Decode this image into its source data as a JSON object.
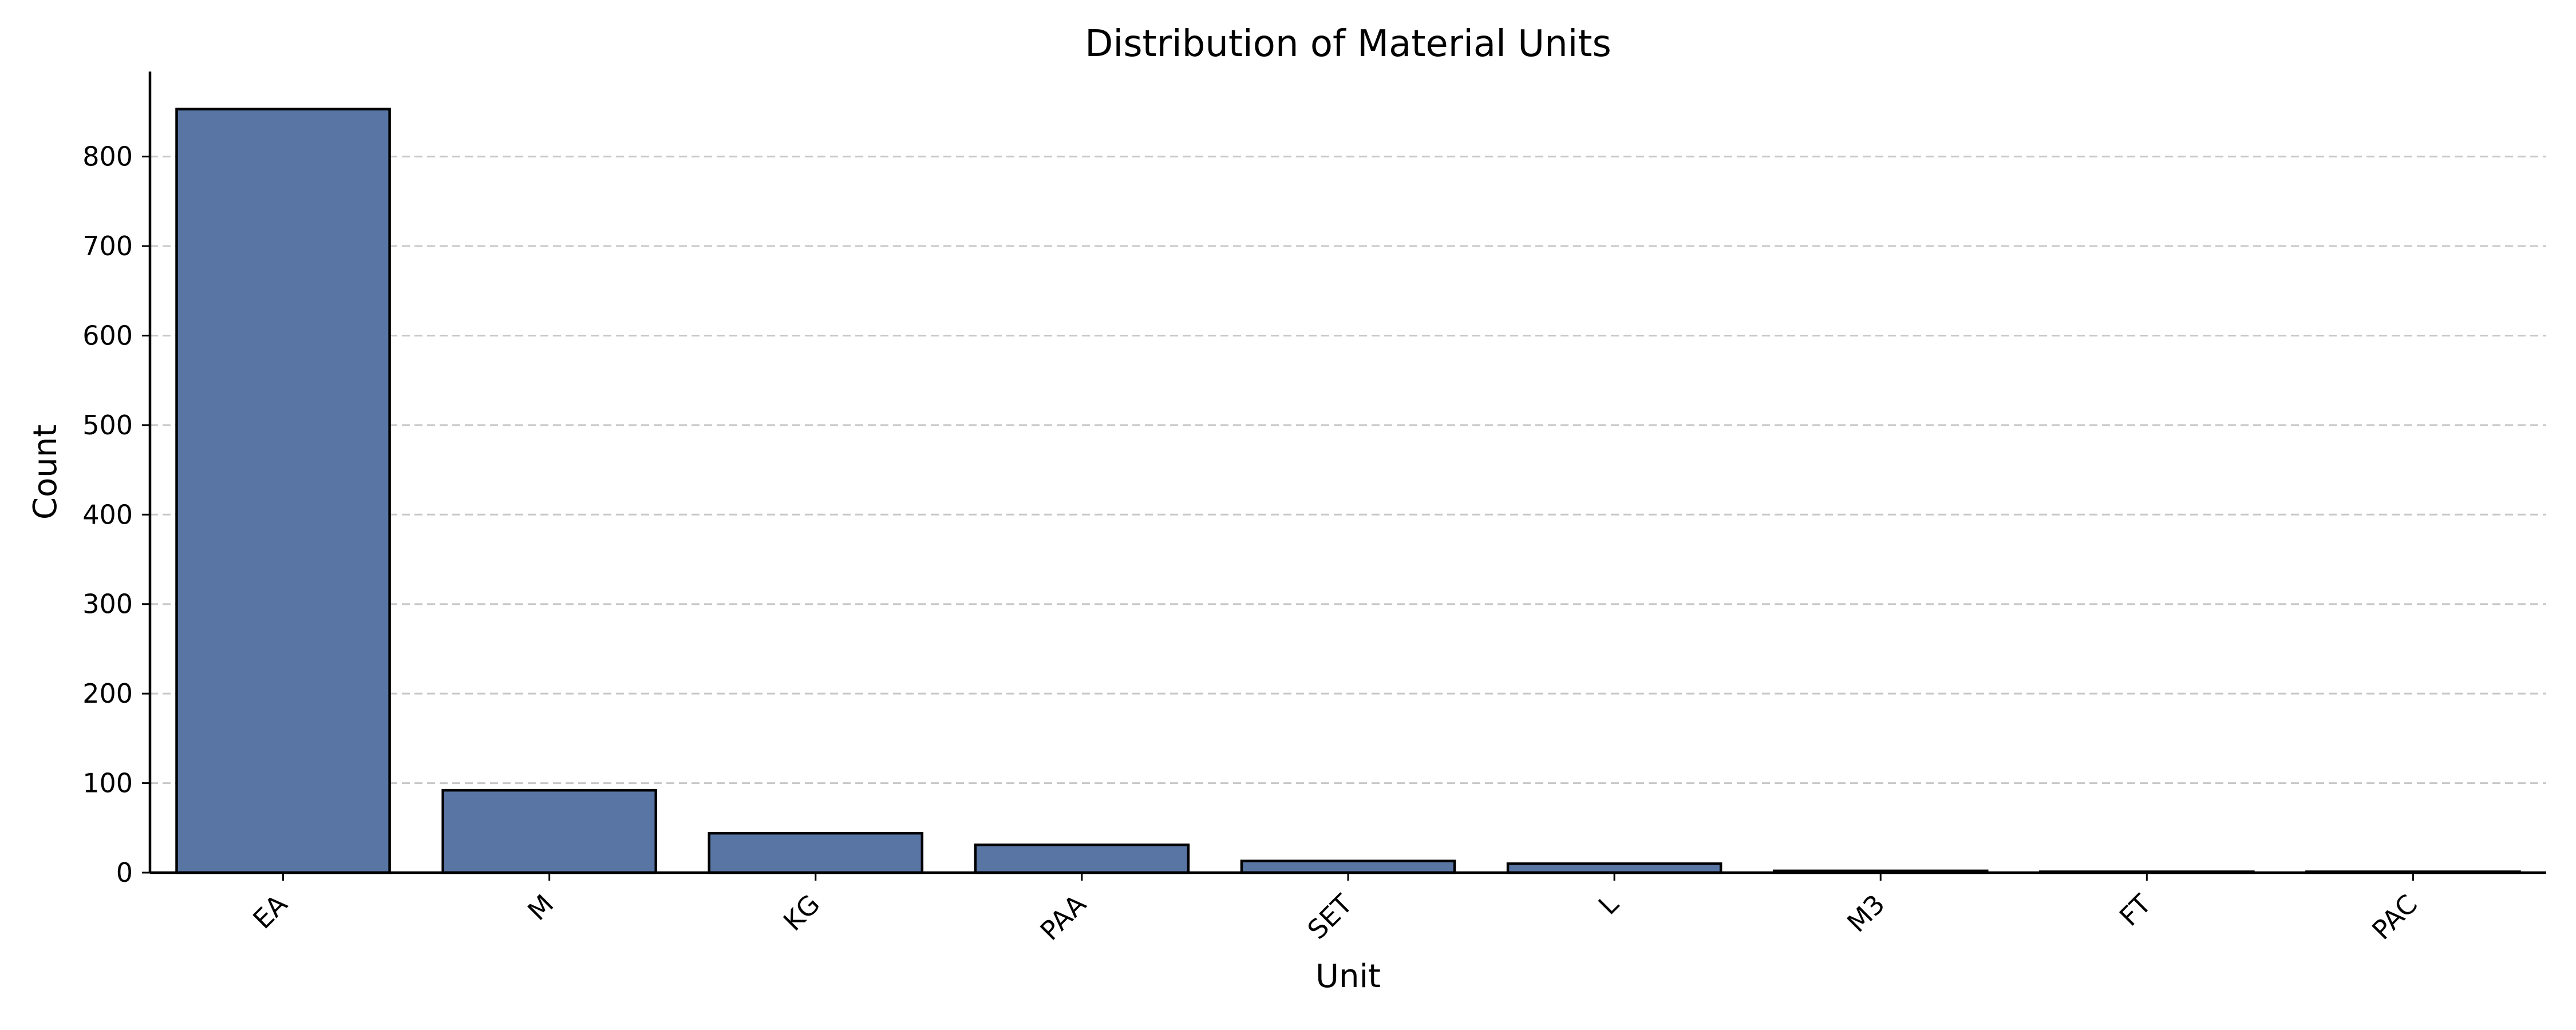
{
  "chart_data": {
    "type": "bar",
    "title": "Distribution of Material Units",
    "xlabel": "Unit",
    "ylabel": "Count",
    "categories": [
      "EA",
      "M",
      "KG",
      "PAA",
      "SET",
      "L",
      "M3",
      "FT",
      "PAC"
    ],
    "values": [
      853,
      92,
      44,
      31,
      13,
      10,
      2,
      1,
      1
    ],
    "ylim": [
      0,
      895
    ],
    "yticks": [
      0,
      100,
      200,
      300,
      400,
      500,
      600,
      700,
      800
    ],
    "grid": "y-dashed",
    "bar_color": "#5975a4",
    "legend": "none"
  }
}
